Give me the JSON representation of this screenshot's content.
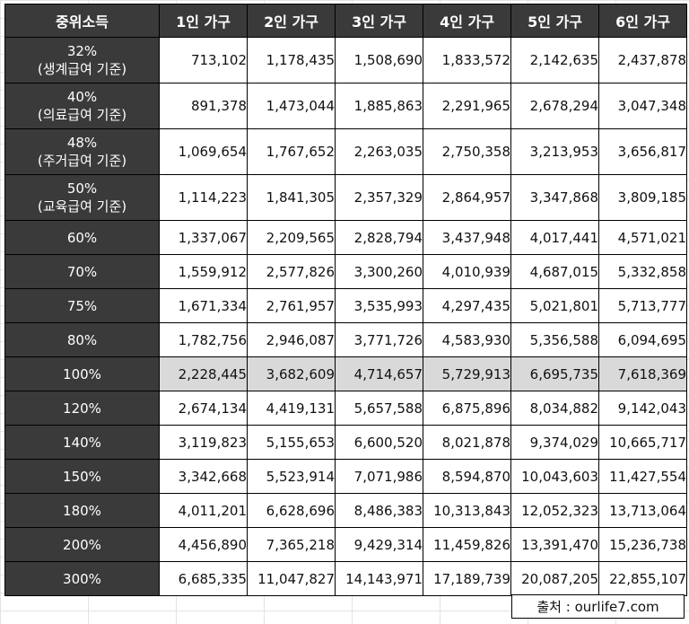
{
  "table": {
    "headers": [
      "중위소득",
      "1인 가구",
      "2인 가구",
      "3인 가구",
      "4인 가구",
      "5인 가구",
      "6인 가구"
    ],
    "rows": [
      {
        "label": [
          "32%",
          "(생계급여 기준)"
        ],
        "values": [
          "713,102",
          "1,178,435",
          "1,508,690",
          "1,833,572",
          "2,142,635",
          "2,437,878"
        ]
      },
      {
        "label": [
          "40%",
          "(의료급여 기준)"
        ],
        "values": [
          "891,378",
          "1,473,044",
          "1,885,863",
          "2,291,965",
          "2,678,294",
          "3,047,348"
        ]
      },
      {
        "label": [
          "48%",
          "(주거급여 기준)"
        ],
        "values": [
          "1,069,654",
          "1,767,652",
          "2,263,035",
          "2,750,358",
          "3,213,953",
          "3,656,817"
        ]
      },
      {
        "label": [
          "50%",
          "(교육급여 기준)"
        ],
        "values": [
          "1,114,223",
          "1,841,305",
          "2,357,329",
          "2,864,957",
          "3,347,868",
          "3,809,185"
        ]
      },
      {
        "label": [
          "60%"
        ],
        "values": [
          "1,337,067",
          "2,209,565",
          "2,828,794",
          "3,437,948",
          "4,017,441",
          "4,571,021"
        ]
      },
      {
        "label": [
          "70%"
        ],
        "values": [
          "1,559,912",
          "2,577,826",
          "3,300,260",
          "4,010,939",
          "4,687,015",
          "5,332,858"
        ]
      },
      {
        "label": [
          "75%"
        ],
        "values": [
          "1,671,334",
          "2,761,957",
          "3,535,993",
          "4,297,435",
          "5,021,801",
          "5,713,777"
        ]
      },
      {
        "label": [
          "80%"
        ],
        "values": [
          "1,782,756",
          "2,946,087",
          "3,771,726",
          "4,583,930",
          "5,356,588",
          "6,094,695"
        ]
      },
      {
        "label": [
          "100%"
        ],
        "values": [
          "2,228,445",
          "3,682,609",
          "4,714,657",
          "5,729,913",
          "6,695,735",
          "7,618,369"
        ],
        "highlight": true
      },
      {
        "label": [
          "120%"
        ],
        "values": [
          "2,674,134",
          "4,419,131",
          "5,657,588",
          "6,875,896",
          "8,034,882",
          "9,142,043"
        ]
      },
      {
        "label": [
          "140%"
        ],
        "values": [
          "3,119,823",
          "5,155,653",
          "6,600,520",
          "8,021,878",
          "9,374,029",
          "10,665,717"
        ]
      },
      {
        "label": [
          "150%"
        ],
        "values": [
          "3,342,668",
          "5,523,914",
          "7,071,986",
          "8,594,870",
          "10,043,603",
          "11,427,554"
        ]
      },
      {
        "label": [
          "180%"
        ],
        "values": [
          "4,011,201",
          "6,628,696",
          "8,486,383",
          "10,313,843",
          "12,052,323",
          "13,713,064"
        ]
      },
      {
        "label": [
          "200%"
        ],
        "values": [
          "4,456,890",
          "7,365,218",
          "9,429,314",
          "11,459,826",
          "13,391,470",
          "15,236,738"
        ]
      },
      {
        "label": [
          "300%"
        ],
        "values": [
          "6,685,335",
          "11,047,827",
          "14,143,971",
          "17,189,739",
          "20,087,205",
          "22,855,107"
        ]
      }
    ]
  },
  "source": "출처 : ourlife7.com",
  "colors": {
    "header_bg": "#3a3a3a",
    "header_text": "#ffffff",
    "highlight_bg": "#d9d9d9"
  }
}
